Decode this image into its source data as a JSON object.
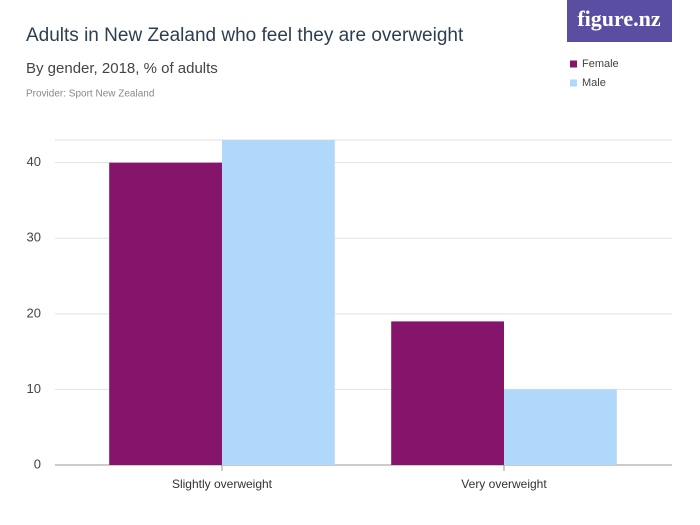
{
  "chart_data": {
    "type": "bar",
    "title": "Adults in New Zealand who feel they are overweight",
    "subtitle": "By gender, 2018, % of adults",
    "provider": "Provider: Sport New Zealand",
    "logo": "figure.nz",
    "categories": [
      "Slightly overweight",
      "Very overweight"
    ],
    "series": [
      {
        "name": "Female",
        "color": "#85146b",
        "values": [
          40,
          19
        ]
      },
      {
        "name": "Male",
        "color": "#b0d8fa",
        "values": [
          43,
          10
        ]
      }
    ],
    "ylim": [
      0,
      43
    ],
    "yticks": [
      0,
      10,
      20,
      30,
      40
    ],
    "grid": true
  }
}
